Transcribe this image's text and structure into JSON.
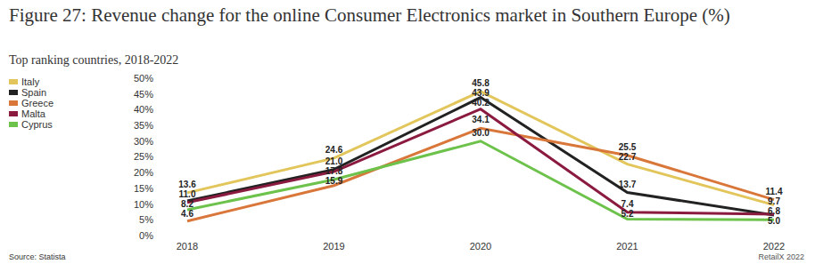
{
  "chart_data": {
    "type": "line",
    "title": "Figure 27: Revenue change for the online Consumer Electronics market in Southern Europe (%)",
    "subtitle": "Top ranking countries, 2018-2022",
    "source": "Source: Statista",
    "credit": "RetailX 2022",
    "categories": [
      "2018",
      "2019",
      "2020",
      "2021",
      "2022"
    ],
    "series": [
      {
        "name": "Italy",
        "color": "#e2c65c",
        "values": [
          13.6,
          24.6,
          45.8,
          22.7,
          9.7
        ],
        "value_labels": [
          "13.6",
          "24.6",
          "45.8",
          "22.7",
          "9.7"
        ]
      },
      {
        "name": "Spain",
        "color": "#222222",
        "values": [
          11.0,
          21.0,
          43.9,
          13.7,
          6.5
        ],
        "value_labels": [
          "11.0",
          "21.0",
          "43.9",
          "13.7",
          null
        ]
      },
      {
        "name": "Greece",
        "color": "#d9773a",
        "values": [
          4.6,
          15.9,
          34.1,
          25.5,
          11.4
        ],
        "value_labels": [
          "4.6",
          "15.9",
          "34.1",
          "25.5",
          "11.4"
        ]
      },
      {
        "name": "Malta",
        "color": "#8b1a3f",
        "values": [
          10.5,
          20.3,
          40.2,
          7.4,
          6.8
        ],
        "value_labels": [
          null,
          null,
          "40.2",
          "7.4",
          "6.8"
        ]
      },
      {
        "name": "Cyprus",
        "color": "#6cc24a",
        "values": [
          8.2,
          17.8,
          30.0,
          5.2,
          5.0
        ],
        "value_labels": [
          "8.2",
          "17.8",
          "30.0",
          "5.2",
          "5.0"
        ]
      }
    ],
    "ylim": [
      0,
      50
    ],
    "yticks": [
      {
        "value": 0,
        "label": "0%"
      },
      {
        "value": 5,
        "label": "5%"
      },
      {
        "value": 10,
        "label": "10%"
      },
      {
        "value": 15,
        "label": "15%"
      },
      {
        "value": 20,
        "label": "20%"
      },
      {
        "value": 25,
        "label": "25%"
      },
      {
        "value": 30,
        "label": "30%"
      },
      {
        "value": 35,
        "label": "35%"
      },
      {
        "value": 40,
        "label": "40%"
      },
      {
        "value": 45,
        "label": "45%"
      },
      {
        "value": 50,
        "label": "50%"
      }
    ],
    "grid": false,
    "legend": "top-left",
    "data_labels": true
  }
}
